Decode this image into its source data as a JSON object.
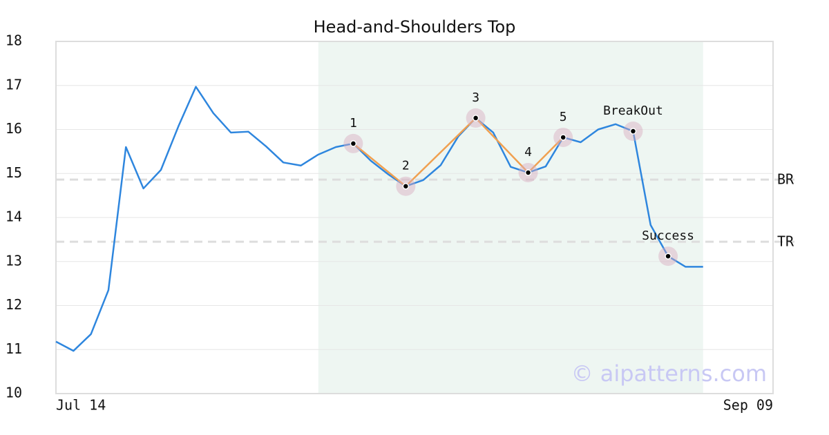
{
  "chart_data": {
    "type": "line",
    "title": "Head-and-Shoulders Top",
    "categories": [
      "Jul 14",
      null,
      null,
      null,
      null,
      null,
      null,
      null,
      null,
      null,
      null,
      null,
      null,
      null,
      null,
      null,
      null,
      null,
      null,
      null,
      null,
      null,
      null,
      null,
      null,
      null,
      null,
      null,
      null,
      null,
      null,
      null,
      null,
      null,
      null,
      null,
      null,
      null,
      null,
      null,
      null,
      "Sep 09"
    ],
    "series": [
      {
        "color": "#2e86de",
        "values": [
          11.18,
          10.97,
          11.35,
          12.35,
          15.6,
          14.66,
          15.08,
          16.07,
          16.97,
          16.37,
          15.93,
          15.95,
          15.62,
          15.25,
          15.18,
          15.43,
          15.6,
          15.68,
          15.29,
          14.98,
          14.71,
          14.85,
          15.19,
          15.84,
          16.26,
          15.93,
          15.15,
          15.02,
          15.16,
          15.82,
          15.71,
          16.0,
          16.12,
          15.96,
          13.83,
          13.12,
          12.88,
          12.88,
          null,
          null,
          null,
          null
        ]
      }
    ],
    "ylim": [
      10,
      18
    ],
    "yticks": [
      10,
      11,
      12,
      13,
      14,
      15,
      16,
      17,
      18
    ],
    "grid": true,
    "highlight": {
      "from": 15,
      "to": 37,
      "color": "#eef6f2"
    },
    "levels": [
      {
        "label": "BR",
        "value": 14.86
      },
      {
        "label": "TR",
        "value": 13.45
      }
    ],
    "pattern": {
      "color": "#f0a050",
      "points": [
        {
          "label": "1",
          "x": 17,
          "y": 15.68
        },
        {
          "label": "2",
          "x": 20,
          "y": 14.71
        },
        {
          "label": "3",
          "x": 24,
          "y": 16.26
        },
        {
          "label": "4",
          "x": 27,
          "y": 15.02
        },
        {
          "label": "5",
          "x": 29,
          "y": 15.82
        }
      ]
    },
    "signals": [
      {
        "label": "BreakOut",
        "x": 33,
        "y": 15.96
      },
      {
        "label": "Success",
        "x": 35,
        "y": 13.12
      }
    ],
    "watermark": "© aipatterns.com"
  }
}
